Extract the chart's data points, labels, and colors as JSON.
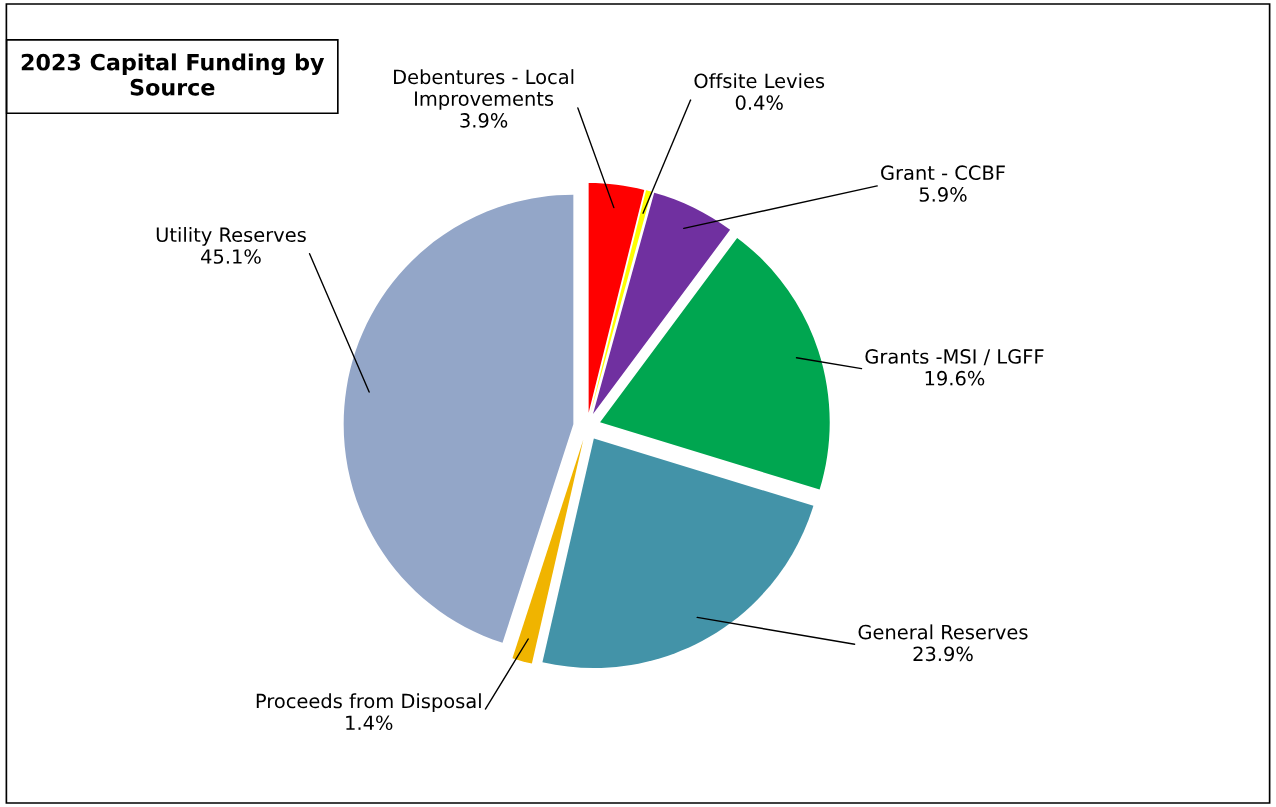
{
  "chart_data": {
    "type": "pie",
    "title": "2023 Capital Funding by Source",
    "categories": [
      "Debentures - Local\nImprovements",
      "Offsite Levies",
      "Grant - CCBF",
      "Grants -MSI / LGFF",
      "General Reserves",
      "Proceeds from Disposal",
      "Utility Reserves"
    ],
    "values": [
      3.9,
      0.4,
      5.9,
      19.6,
      23.9,
      1.4,
      45.1
    ],
    "value_labels": [
      "3.9%",
      "0.4%",
      "5.9%",
      "19.6%",
      "23.9%",
      "1.4%",
      "45.1%"
    ],
    "colors": [
      "#ff0000",
      "#ffff00",
      "#7030a0",
      "#00a650",
      "#4393a8",
      "#f0b400",
      "#93a6c8"
    ],
    "legend": false
  }
}
